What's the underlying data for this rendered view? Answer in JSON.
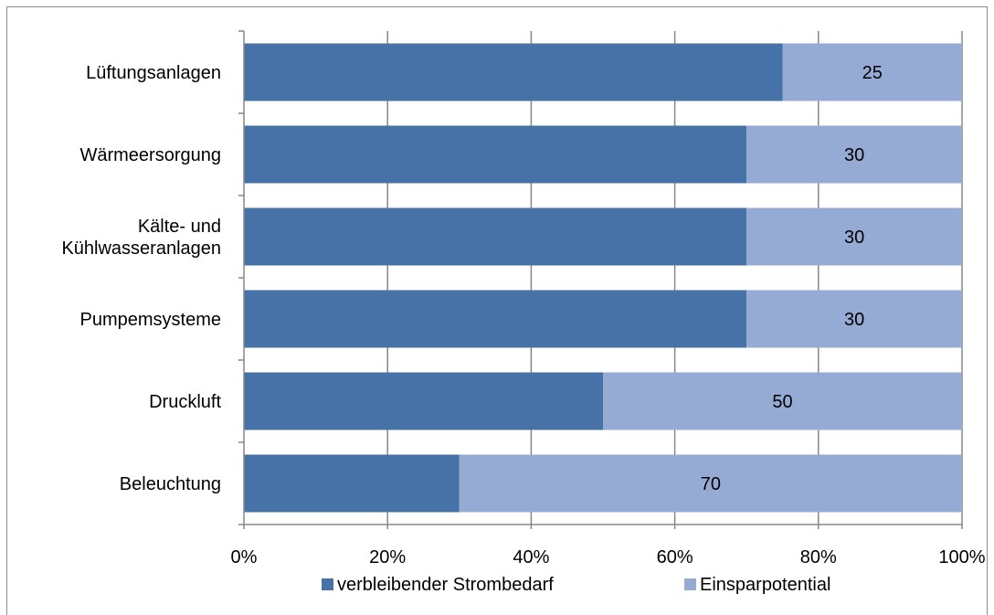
{
  "chart_data": {
    "type": "bar",
    "orientation": "horizontal",
    "stacked": true,
    "percent_stacked": true,
    "categories": [
      [
        "Lüftungsanlagen"
      ],
      [
        "Wärmeersorgung"
      ],
      [
        "Kälte- und",
        "Kühlwasseranlagen"
      ],
      [
        "Pumpemsysteme"
      ],
      [
        "Druckluft"
      ],
      [
        "Beleuchtung"
      ]
    ],
    "series": [
      {
        "name": "verbleibender Strombedarf",
        "color": "#4672a8",
        "values": [
          75,
          70,
          70,
          70,
          50,
          30
        ],
        "show_labels": false
      },
      {
        "name": "Einsparpotential",
        "color": "#95abd3",
        "values": [
          25,
          30,
          30,
          30,
          50,
          70
        ],
        "show_labels": true
      }
    ],
    "x_ticks": [
      "0%",
      "20%",
      "40%",
      "60%",
      "80%",
      "100%"
    ],
    "xlim": [
      0,
      100
    ],
    "grid": "vertical",
    "legend_position": "bottom",
    "title": "",
    "xlabel": "",
    "ylabel": ""
  }
}
